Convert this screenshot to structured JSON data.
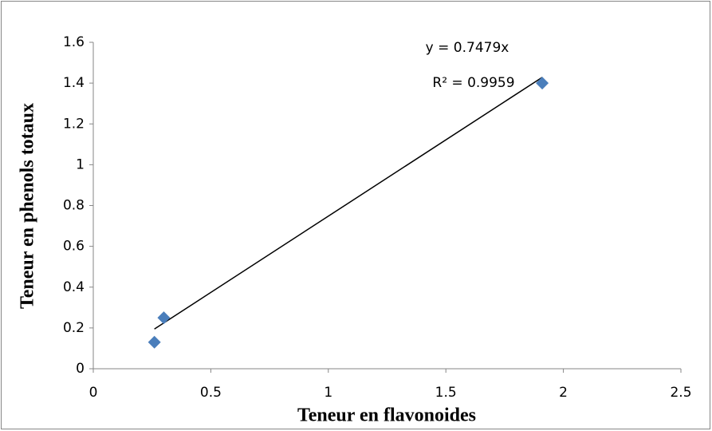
{
  "chart_data": {
    "type": "scatter",
    "xlabel": "Teneur en flavonoides",
    "ylabel": "Teneur en phenols totaux",
    "series": [
      {
        "color": "#4a7ebb",
        "x": [
          0.26,
          0.3,
          1.91
        ],
        "values": [
          0.13,
          0.25,
          1.4
        ]
      }
    ],
    "trendline": {
      "slope": 0.7479,
      "color": "#000000",
      "equation": "y = 0.7479x",
      "r2": "R² = 0.9959"
    },
    "xlim": [
      0,
      2.5
    ],
    "xticks": [
      0,
      0.5,
      1,
      1.5,
      2,
      2.5
    ],
    "ylim": [
      0,
      1.6
    ],
    "yticks": [
      0,
      0.2,
      0.4,
      0.6,
      0.8,
      1,
      1.2,
      1.4,
      1.6
    ],
    "grid": false
  }
}
